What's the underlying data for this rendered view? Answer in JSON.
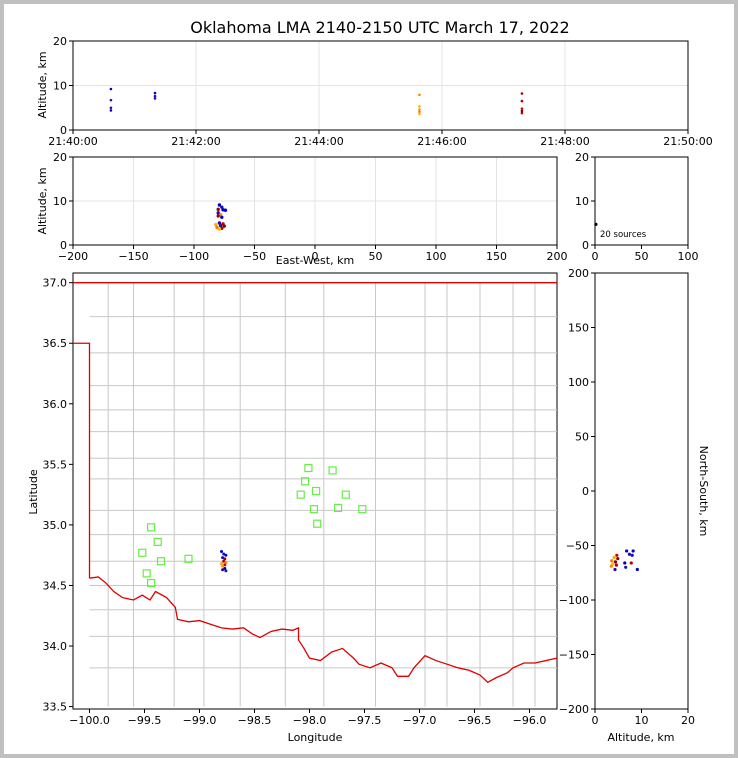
{
  "chart_data": [
    {
      "panel": "time-altitude",
      "type": "scatter",
      "title": "Oklahoma LMA 2140-2150 UTC March 17, 2022",
      "xlabel": "",
      "ylabel": "Altitude, km",
      "xlim": [
        "21:40:00",
        "21:50:00"
      ],
      "ylim": [
        0,
        20
      ],
      "grid": true,
      "x_ticks": [
        "21:40:00",
        "21:42:00",
        "21:44:00",
        "21:46:00",
        "21:48:00",
        "21:50:00"
      ],
      "y_ticks": [
        "0",
        "10",
        "20"
      ],
      "points": [
        {
          "x": "21:40:37",
          "y": 9.2,
          "color": "#0000cc"
        },
        {
          "x": "21:40:37",
          "y": 6.7,
          "color": "#1a1a99"
        },
        {
          "x": "21:40:37",
          "y": 5.0,
          "color": "#3300aa"
        },
        {
          "x": "21:40:37",
          "y": 4.4,
          "color": "#0000aa"
        },
        {
          "x": "21:41:20",
          "y": 8.3,
          "color": "#0000dd"
        },
        {
          "x": "21:41:20",
          "y": 7.6,
          "color": "#1111bb"
        },
        {
          "x": "21:41:20",
          "y": 7.1,
          "color": "#2200cc"
        },
        {
          "x": "21:45:38",
          "y": 7.9,
          "color": "#ff8800"
        },
        {
          "x": "21:45:38",
          "y": 5.3,
          "color": "#ffaa00"
        },
        {
          "x": "21:45:38",
          "y": 4.6,
          "color": "#ff9900"
        },
        {
          "x": "21:45:38",
          "y": 4.1,
          "color": "#ff7700"
        },
        {
          "x": "21:45:38",
          "y": 3.6,
          "color": "#ffbb00"
        },
        {
          "x": "21:47:18",
          "y": 8.2,
          "color": "#990000"
        },
        {
          "x": "21:47:18",
          "y": 6.5,
          "color": "#aa0000"
        },
        {
          "x": "21:47:18",
          "y": 4.8,
          "color": "#cc0000"
        },
        {
          "x": "21:47:18",
          "y": 4.3,
          "color": "#880000"
        },
        {
          "x": "21:47:18",
          "y": 3.8,
          "color": "#bb0000"
        }
      ]
    },
    {
      "panel": "east-west-altitude",
      "type": "scatter",
      "xlabel": "East-West, km",
      "ylabel": "Altitude, km",
      "xlim": [
        -200,
        200
      ],
      "ylim": [
        0,
        20
      ],
      "grid": true,
      "x_ticks": [
        "−200",
        "−150",
        "−100",
        "−50",
        "0",
        "50",
        "100",
        "150",
        "200"
      ],
      "y_ticks": [
        "0",
        "10",
        "20"
      ],
      "points": [
        {
          "x": -79,
          "y": 9.1,
          "color": "#0000cc"
        },
        {
          "x": -77,
          "y": 8.6,
          "color": "#1111bb"
        },
        {
          "x": -80,
          "y": 8.1,
          "color": "#990000"
        },
        {
          "x": -76,
          "y": 8.0,
          "color": "#0000aa"
        },
        {
          "x": -74,
          "y": 7.9,
          "color": "#0000dd"
        },
        {
          "x": -80,
          "y": 7.3,
          "color": "#2200cc"
        },
        {
          "x": -78,
          "y": 6.9,
          "color": "#ff8800"
        },
        {
          "x": -80,
          "y": 6.6,
          "color": "#aa0000"
        },
        {
          "x": -77,
          "y": 6.3,
          "color": "#0000cc"
        },
        {
          "x": -79,
          "y": 5.0,
          "color": "#3300aa"
        },
        {
          "x": -76,
          "y": 4.8,
          "color": "#cc0000"
        },
        {
          "x": -82,
          "y": 4.6,
          "color": "#ffaa00"
        },
        {
          "x": -78,
          "y": 4.4,
          "color": "#1a1a99"
        },
        {
          "x": -75,
          "y": 4.3,
          "color": "#880000"
        },
        {
          "x": -81,
          "y": 4.0,
          "color": "#ff7700"
        },
        {
          "x": -77,
          "y": 3.8,
          "color": "#bb0000"
        },
        {
          "x": -79,
          "y": 3.6,
          "color": "#ffbb00"
        }
      ]
    },
    {
      "panel": "altitude-histogram",
      "type": "scatter",
      "xlabel": "",
      "ylabel": "",
      "xlim": [
        0,
        100
      ],
      "ylim": [
        0,
        20
      ],
      "x_ticks": [
        "0",
        "50",
        "100"
      ],
      "y_ticks": [
        "0",
        "10",
        "20"
      ],
      "annotation": "20 sources",
      "points": [
        {
          "x": 1,
          "y": 4.7,
          "color": "#000000"
        }
      ]
    },
    {
      "panel": "plan-view",
      "type": "scatter",
      "xlabel": "Longitude",
      "ylabel": "Latitude",
      "xlim": [
        -100.15,
        -95.75
      ],
      "ylim": [
        33.48,
        37.08
      ],
      "x_ticks": [
        "−100.0",
        "−99.5",
        "−99.0",
        "−98.5",
        "−98.0",
        "−97.5",
        "−97.0",
        "−96.5",
        "−96.0"
      ],
      "y_ticks": [
        "33.5",
        "34.0",
        "34.5",
        "35.0",
        "35.5",
        "36.0",
        "36.5",
        "37.0"
      ],
      "stations": [
        {
          "lon": -98.01,
          "lat": 35.47
        },
        {
          "lon": -97.79,
          "lat": 35.45
        },
        {
          "lon": -98.04,
          "lat": 35.36
        },
        {
          "lon": -97.94,
          "lat": 35.28
        },
        {
          "lon": -98.08,
          "lat": 35.25
        },
        {
          "lon": -97.67,
          "lat": 35.25
        },
        {
          "lon": -97.96,
          "lat": 35.13
        },
        {
          "lon": -97.74,
          "lat": 35.14
        },
        {
          "lon": -97.52,
          "lat": 35.13
        },
        {
          "lon": -97.93,
          "lat": 35.01
        },
        {
          "lon": -99.44,
          "lat": 34.98
        },
        {
          "lon": -99.38,
          "lat": 34.86
        },
        {
          "lon": -99.52,
          "lat": 34.77
        },
        {
          "lon": -99.1,
          "lat": 34.72
        },
        {
          "lon": -99.35,
          "lat": 34.7
        },
        {
          "lon": -99.48,
          "lat": 34.6
        },
        {
          "lon": -99.44,
          "lat": 34.52
        }
      ],
      "points": [
        {
          "x": -98.8,
          "y": 34.78,
          "color": "#0000cc"
        },
        {
          "x": -98.78,
          "y": 34.76,
          "color": "#1111bb"
        },
        {
          "x": -98.76,
          "y": 34.75,
          "color": "#0000dd"
        },
        {
          "x": -98.79,
          "y": 34.73,
          "color": "#2200cc"
        },
        {
          "x": -98.77,
          "y": 34.72,
          "color": "#990000"
        },
        {
          "x": -98.78,
          "y": 34.7,
          "color": "#aa0000"
        },
        {
          "x": -98.76,
          "y": 34.69,
          "color": "#ff8800"
        },
        {
          "x": -98.8,
          "y": 34.68,
          "color": "#ffaa00"
        },
        {
          "x": -98.77,
          "y": 34.67,
          "color": "#cc0000"
        },
        {
          "x": -98.79,
          "y": 34.66,
          "color": "#ff9900"
        },
        {
          "x": -98.77,
          "y": 34.64,
          "color": "#0000aa"
        },
        {
          "x": -98.79,
          "y": 34.63,
          "color": "#3300aa"
        },
        {
          "x": -98.76,
          "y": 34.62,
          "color": "#1a1a99"
        }
      ]
    },
    {
      "panel": "altitude-north-south",
      "type": "scatter",
      "xlabel": "Altitude, km",
      "ylabel": "North-South, km",
      "xlim": [
        0,
        20
      ],
      "ylim": [
        -200,
        200
      ],
      "x_ticks": [
        "0",
        "10",
        "20"
      ],
      "y_ticks": [
        "200",
        "150",
        "100",
        "50",
        "0",
        "−50",
        "−100",
        "−150",
        "−200"
      ],
      "points": [
        {
          "x": 6.8,
          "y": -55,
          "color": "#0000cc"
        },
        {
          "x": 8.2,
          "y": -55,
          "color": "#0000dd"
        },
        {
          "x": 7.4,
          "y": -58,
          "color": "#1111bb"
        },
        {
          "x": 8.0,
          "y": -59,
          "color": "#2200cc"
        },
        {
          "x": 4.7,
          "y": -59,
          "color": "#cc0000"
        },
        {
          "x": 4.1,
          "y": -61,
          "color": "#ffaa00"
        },
        {
          "x": 4.9,
          "y": -62,
          "color": "#990000"
        },
        {
          "x": 3.6,
          "y": -64,
          "color": "#ff7700"
        },
        {
          "x": 4.4,
          "y": -65,
          "color": "#880000"
        },
        {
          "x": 6.4,
          "y": -66,
          "color": "#0000aa"
        },
        {
          "x": 3.8,
          "y": -67,
          "color": "#ffbb00"
        },
        {
          "x": 4.6,
          "y": -68,
          "color": "#aa0000"
        },
        {
          "x": 3.5,
          "y": -69,
          "color": "#ff8800"
        },
        {
          "x": 6.6,
          "y": -70,
          "color": "#1a1a99"
        },
        {
          "x": 4.3,
          "y": -72,
          "color": "#3300aa"
        },
        {
          "x": 9.1,
          "y": -72,
          "color": "#0000cc"
        },
        {
          "x": 7.8,
          "y": -66,
          "color": "#bb0000"
        }
      ]
    }
  ]
}
